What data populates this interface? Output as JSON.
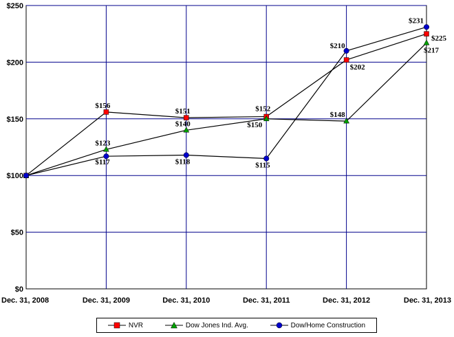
{
  "chart_data": {
    "type": "line",
    "categories": [
      "Dec. 31, 2008",
      "Dec. 31, 2009",
      "Dec. 31, 2010",
      "Dec. 31, 2011",
      "Dec. 31, 2012",
      "Dec. 31, 2013"
    ],
    "ylim": [
      0,
      250
    ],
    "yticks": [
      0,
      50,
      100,
      150,
      200,
      250
    ],
    "ytick_labels": [
      "$0",
      "$50",
      "$100",
      "$150",
      "$200",
      "$250"
    ],
    "grid": true,
    "legend_position": "bottom",
    "series": [
      {
        "name": "NVR",
        "color": "#ff0000",
        "marker": "square",
        "values": [
          100,
          156,
          151,
          152,
          202,
          225
        ],
        "labels": [
          "",
          "$156",
          "$151",
          "$152",
          "$202",
          "$225"
        ]
      },
      {
        "name": "Dow Jones Ind. Avg.",
        "color": "#00a000",
        "marker": "triangle",
        "values": [
          100,
          123,
          140,
          150,
          148,
          217
        ],
        "labels": [
          "",
          "$123",
          "$140",
          "$150",
          "$148",
          "$217"
        ]
      },
      {
        "name": "Dow/Home Construction",
        "color": "#0000cc",
        "marker": "circle",
        "values": [
          100,
          117,
          118,
          115,
          210,
          231
        ],
        "labels": [
          "",
          "$117",
          "$118",
          "$115",
          "$210",
          "$231"
        ]
      }
    ]
  }
}
